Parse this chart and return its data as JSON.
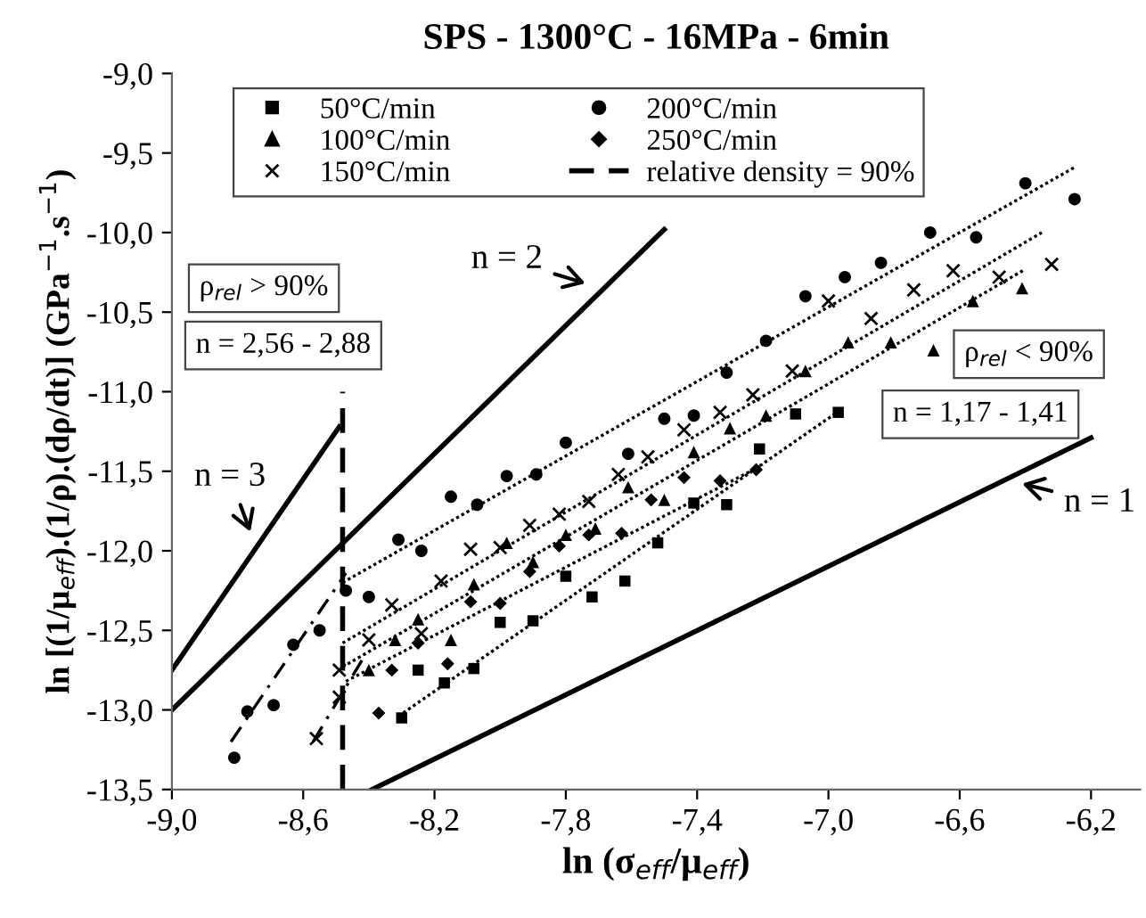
{
  "chart_data": {
    "type": "scatter",
    "title": "SPS - 1300°C - 16MPa - 6min",
    "xlabel": "ln (σ$_{eff}$/μ$_{eff}$)",
    "ylabel": "ln [(1/μ$_{eff}$).(1/ρ).(dρ/dt)] (GPa$^{−1}$.s$^{−1}$)",
    "xlim": [
      -9.0,
      -6.05
    ],
    "ylim": [
      -13.5,
      -9.0
    ],
    "xticks": [
      {
        "value": -9.0,
        "label": "-9,0"
      },
      {
        "value": -8.6,
        "label": "-8,6"
      },
      {
        "value": -8.2,
        "label": "-8,2"
      },
      {
        "value": -7.8,
        "label": "-7,8"
      },
      {
        "value": -7.4,
        "label": "-7,4"
      },
      {
        "value": -7.0,
        "label": "-7,0"
      },
      {
        "value": -6.6,
        "label": "-6,6"
      },
      {
        "value": -6.2,
        "label": "-6,2"
      }
    ],
    "yticks": [
      {
        "value": -13.5,
        "label": "-13,5"
      },
      {
        "value": -13.0,
        "label": "-13,0"
      },
      {
        "value": -12.5,
        "label": "-12,5"
      },
      {
        "value": -12.0,
        "label": "-12,0"
      },
      {
        "value": -11.5,
        "label": "-11,5"
      },
      {
        "value": -11.0,
        "label": "-11,0"
      },
      {
        "value": -10.5,
        "label": "-10,5"
      },
      {
        "value": -10.0,
        "label": "-10,0"
      },
      {
        "value": -9.5,
        "label": "-9,5"
      },
      {
        "value": -9.0,
        "label": "-9,0"
      }
    ],
    "grid": false,
    "legend": "top",
    "series": [
      {
        "name": "50°C/min",
        "marker": "square",
        "color": "#000000",
        "x": [
          -8.3,
          -8.25,
          -8.17,
          -8.08,
          -8.0,
          -7.9,
          -7.8,
          -7.72,
          -7.62,
          -7.52,
          -7.41,
          -7.31,
          -7.21,
          -7.1,
          -6.97
        ],
        "values": [
          -13.05,
          -12.75,
          -12.83,
          -12.74,
          -12.45,
          -12.44,
          -12.16,
          -12.29,
          -12.19,
          -11.95,
          -11.7,
          -11.71,
          -11.36,
          -11.14,
          -11.13
        ]
      },
      {
        "name": "100°C/min",
        "marker": "triangle",
        "color": "#000000",
        "x": [
          -8.4,
          -8.32,
          -8.25,
          -8.15,
          -8.08,
          -7.98,
          -7.9,
          -7.8,
          -7.71,
          -7.61,
          -7.5,
          -7.41,
          -7.3,
          -7.19,
          -7.07,
          -6.94,
          -6.81,
          -6.68,
          -6.56,
          -6.41
        ],
        "values": [
          -12.75,
          -12.56,
          -12.43,
          -12.56,
          -12.21,
          -11.95,
          -12.07,
          -11.9,
          -11.86,
          -11.6,
          -11.68,
          -11.38,
          -11.23,
          -11.15,
          -10.87,
          -10.69,
          -10.69,
          -10.74,
          -10.43,
          -10.35
        ]
      },
      {
        "name": "150°C/min",
        "marker": "cross",
        "color": "#000000",
        "x": [
          -8.56,
          -8.49,
          -8.49,
          -8.4,
          -8.33,
          -8.24,
          -8.18,
          -8.09,
          -8.0,
          -7.91,
          -7.82,
          -7.73,
          -7.64,
          -7.55,
          -7.44,
          -7.33,
          -7.23,
          -7.11,
          -7.0,
          -6.87,
          -6.74,
          -6.62,
          -6.48,
          -6.32
        ],
        "values": [
          -13.18,
          -12.92,
          -12.75,
          -12.56,
          -12.34,
          -12.52,
          -12.19,
          -11.99,
          -11.98,
          -11.84,
          -11.77,
          -11.69,
          -11.52,
          -11.41,
          -11.24,
          -11.13,
          -11.02,
          -10.87,
          -10.43,
          -10.54,
          -10.36,
          -10.24,
          -10.28,
          -10.2
        ]
      },
      {
        "name": "200°C/min",
        "marker": "circle",
        "color": "#000000",
        "x": [
          -8.81,
          -8.77,
          -8.69,
          -8.63,
          -8.55,
          -8.47,
          -8.4,
          -8.31,
          -8.24,
          -8.15,
          -8.07,
          -7.98,
          -7.89,
          -7.8,
          -7.61,
          -7.5,
          -7.41,
          -7.31,
          -7.19,
          -7.07,
          -6.95,
          -6.84,
          -6.69,
          -6.55,
          -6.4,
          -6.25
        ],
        "values": [
          -13.3,
          -13.01,
          -12.97,
          -12.59,
          -12.5,
          -12.25,
          -12.29,
          -11.93,
          -12.0,
          -11.66,
          -11.71,
          -11.53,
          -11.52,
          -11.32,
          -11.39,
          -11.17,
          -11.15,
          -10.88,
          -10.68,
          -10.4,
          -10.28,
          -10.19,
          -10.0,
          -10.03,
          -9.69,
          -9.79
        ]
      },
      {
        "name": "250°C/min",
        "marker": "diamond",
        "color": "#000000",
        "x": [
          -8.37,
          -8.33,
          -8.25,
          -8.16,
          -8.09,
          -8.0,
          -7.91,
          -7.82,
          -7.73,
          -7.63,
          -7.54,
          -7.44,
          -7.33,
          -7.22
        ],
        "values": [
          -13.02,
          -12.75,
          -12.58,
          -12.71,
          -12.32,
          -12.33,
          -12.13,
          -11.97,
          -11.9,
          -11.89,
          -11.68,
          -11.54,
          -11.56,
          -11.49
        ]
      },
      {
        "name": "relative density = 90%",
        "type": "line",
        "line_style": "dashed",
        "color": "#000000",
        "x": [
          -8.48,
          -8.48
        ],
        "values": [
          -13.5,
          -11.0
        ]
      },
      {
        "type": "line",
        "line_style": "dotted",
        "color": "#000000",
        "x": [
          -8.48,
          -6.25
        ],
        "values": [
          -12.2,
          -9.59
        ]
      },
      {
        "type": "line",
        "line_style": "dotted",
        "color": "#000000",
        "x": [
          -8.48,
          -6.35
        ],
        "values": [
          -12.58,
          -10.0
        ]
      },
      {
        "type": "line",
        "line_style": "dotted",
        "color": "#000000",
        "x": [
          -8.48,
          -6.4
        ],
        "values": [
          -12.73,
          -10.23
        ]
      },
      {
        "type": "line",
        "line_style": "dotted",
        "color": "#000000",
        "x": [
          -8.47,
          -7.2
        ],
        "values": [
          -12.82,
          -11.46
        ]
      },
      {
        "type": "line",
        "line_style": "dotted",
        "color": "#000000",
        "x": [
          -8.31,
          -6.96
        ],
        "values": [
          -13.04,
          -11.11
        ]
      },
      {
        "type": "line",
        "line_style": "dashdot",
        "color": "#000000",
        "x": [
          -8.82,
          -8.47
        ],
        "values": [
          -13.2,
          -12.14
        ]
      },
      {
        "type": "line",
        "line_style": "dashdot",
        "color": "#000000",
        "x": [
          -8.57,
          -8.41
        ],
        "values": [
          -13.2,
          -12.65
        ]
      },
      {
        "type": "line",
        "line_style": "solid",
        "color": "#000000",
        "x": [
          -9.0,
          -8.49
        ],
        "values": [
          -12.75,
          -11.22
        ]
      },
      {
        "type": "line",
        "line_style": "solid",
        "color": "#000000",
        "x": [
          -9.0,
          -7.5
        ],
        "values": [
          -13.0,
          -9.98
        ]
      },
      {
        "type": "line",
        "line_style": "solid",
        "color": "#000000",
        "x": [
          -8.39,
          -6.2
        ],
        "values": [
          -13.5,
          -11.29
        ]
      }
    ],
    "annotations": [
      "n = 2",
      "n = 3",
      "n = 1",
      "ρ$_{rel}$ > 90%",
      "n = 2,56 - 2,88",
      "ρ$_{rel}$ < 90%",
      "n = 1,17 - 1,41"
    ]
  }
}
